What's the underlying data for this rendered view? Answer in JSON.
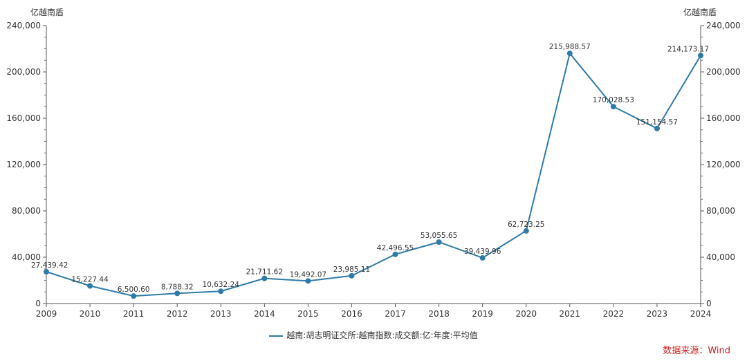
{
  "chart_data": {
    "type": "line",
    "left_axis_unit": "亿越南盾",
    "right_axis_unit": "亿越南盾",
    "x": [
      "2009",
      "2010",
      "2011",
      "2012",
      "2013",
      "2014",
      "2015",
      "2016",
      "2017",
      "2018",
      "2019",
      "2020",
      "2021",
      "2022",
      "2023",
      "2024"
    ],
    "series": [
      {
        "name": "越南:胡志明证交所:越南指数:成交额:亿:年度:平均值",
        "values": [
          27439.42,
          15227.44,
          6500.6,
          8788.32,
          10632.24,
          21711.62,
          19492.07,
          23985.11,
          42496.55,
          53055.65,
          39439.96,
          62723.25,
          215988.57,
          170028.53,
          151154.57,
          214173.17
        ],
        "data_labels": [
          "27,439.42",
          "15,227.44",
          "6,500.60",
          "8,788.32",
          "10,632.24",
          "21,711.62",
          "19,492.07",
          "23,985.11",
          "42,496.55",
          "53,055.65",
          "39,439.96",
          "62,723.25",
          "215,988.57",
          "170,028.53",
          "151,154.57",
          "214,173.17"
        ]
      }
    ],
    "ylim": [
      0,
      240000
    ],
    "y_ticks": [
      "0",
      "40,000",
      "80,000",
      "120,000",
      "160,000",
      "200,000",
      "240,000"
    ],
    "grid": false,
    "legend_position": "bottom-center",
    "line_color": "#2e7aa8"
  },
  "source_label": "数据来源：Wind"
}
